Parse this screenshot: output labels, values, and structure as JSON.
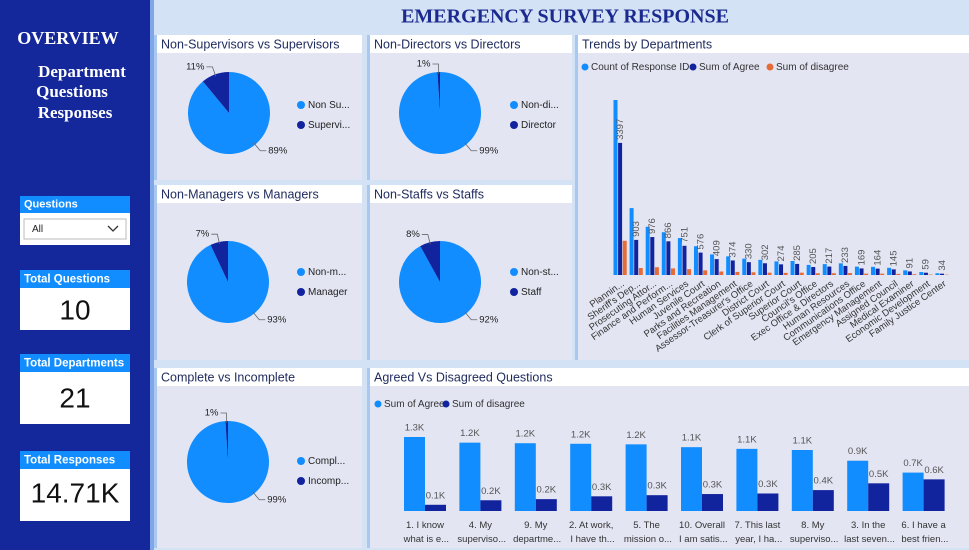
{
  "title": "EMERGENCY SURVEY RESPONSE",
  "sidebar": {
    "heading": "OVERVIEW",
    "subheading": [
      "Department",
      "Questions",
      "Responses"
    ]
  },
  "filter": {
    "label": "Questions",
    "value": "All"
  },
  "cards": [
    {
      "label": "Total Questions",
      "value": "10"
    },
    {
      "label": "Total Departments",
      "value": "21"
    },
    {
      "label": "Total Responses",
      "value": "14.71K"
    }
  ],
  "chart_data": [
    {
      "type": "pie",
      "title": "Non-Supervisors vs Supervisors",
      "categories": [
        "Non Su...",
        "Supervi..."
      ],
      "values": [
        89,
        11
      ],
      "value_labels": [
        "89%",
        "11%"
      ],
      "colors": [
        "#118DFF",
        "#12239E"
      ]
    },
    {
      "type": "pie",
      "title": "Non-Directors vs Directors",
      "categories": [
        "Non-di...",
        "Director"
      ],
      "values": [
        99,
        1
      ],
      "value_labels": [
        "99%",
        "1%"
      ],
      "colors": [
        "#118DFF",
        "#12239E"
      ]
    },
    {
      "type": "pie",
      "title": "Non-Managers vs Managers",
      "categories": [
        "Non-m...",
        "Manager"
      ],
      "values": [
        93,
        7
      ],
      "value_labels": [
        "93%",
        "7%"
      ],
      "colors": [
        "#118DFF",
        "#12239E"
      ]
    },
    {
      "type": "pie",
      "title": "Non-Staffs vs Staffs",
      "categories": [
        "Non-st...",
        "Staff"
      ],
      "values": [
        92,
        8
      ],
      "value_labels": [
        "92%",
        "8%"
      ],
      "colors": [
        "#118DFF",
        "#12239E"
      ]
    },
    {
      "type": "pie",
      "title": "Complete vs Incomplete",
      "categories": [
        "Compl...",
        "Incomp..."
      ],
      "values": [
        99,
        1
      ],
      "value_labels": [
        "99%",
        "1%"
      ],
      "colors": [
        "#118DFF",
        "#12239E"
      ]
    },
    {
      "type": "bar",
      "title": "Trends by Departments",
      "categories": [
        "Plannin...",
        "Sheriff's Dep...",
        "Prosecuting Attor...",
        "Finance and Perform...",
        "Human Services",
        "Juvenile Court",
        "Parks and Recreation",
        "Facilities Management",
        "Assessor-Treasurer's Office",
        "District Court",
        "Clerk of Superior Court",
        "Superior Court",
        "Council's Office",
        "Exec Office & Directors",
        "Human Resources",
        "Communications Office",
        "Emergency Management",
        "Assigned Council",
        "Medical Examiner",
        "Economic Development",
        "Family Justice Center"
      ],
      "series": [
        {
          "name": "Count of Response ID",
          "color": "#118DFF",
          "values": [
            4500,
            1720,
            1240,
            1100,
            950,
            740,
            530,
            480,
            420,
            390,
            350,
            360,
            260,
            280,
            300,
            215,
            210,
            185,
            120,
            75,
            45
          ]
        },
        {
          "name": "Sum of Agree",
          "color": "#12239E",
          "show_labels": true,
          "values": [
            3397,
            903,
            976,
            866,
            751,
            576,
            409,
            374,
            330,
            302,
            274,
            285,
            205,
            217,
            233,
            169,
            164,
            145,
            91,
            59,
            34
          ]
        },
        {
          "name": "Sum of disagree",
          "color": "#E66C37",
          "values": [
            880,
            180,
            200,
            170,
            150,
            120,
            90,
            80,
            70,
            60,
            55,
            60,
            45,
            45,
            50,
            35,
            35,
            30,
            20,
            12,
            8
          ]
        }
      ]
    },
    {
      "type": "bar",
      "title": "Agreed Vs Disagreed Questions",
      "categories": [
        "1. I know what is e...",
        "4. My superviso...",
        "9. My departme...",
        "2. At work, I have th...",
        "5. The mission o...",
        "10. Overall I am satis...",
        "7. This last year, I ha...",
        "8. My superviso...",
        "3. In the last seven...",
        "6. I have a best frien..."
      ],
      "series": [
        {
          "name": "Sum of Agree",
          "color": "#118DFF",
          "show_labels": true,
          "values": [
            1310,
            1210,
            1200,
            1190,
            1180,
            1130,
            1100,
            1080,
            890,
            680
          ],
          "value_labels": [
            "1.3K",
            "1.2K",
            "1.2K",
            "1.2K",
            "1.2K",
            "1.1K",
            "1.1K",
            "1.1K",
            "0.9K",
            "0.7K"
          ]
        },
        {
          "name": "Sum of disagree",
          "color": "#12239E",
          "show_labels": true,
          "values": [
            110,
            190,
            210,
            260,
            280,
            300,
            310,
            370,
            490,
            560
          ],
          "value_labels": [
            "0.1K",
            "0.2K",
            "0.2K",
            "0.3K",
            "0.3K",
            "0.3K",
            "0.3K",
            "0.4K",
            "0.5K",
            "0.6K"
          ]
        }
      ]
    }
  ]
}
